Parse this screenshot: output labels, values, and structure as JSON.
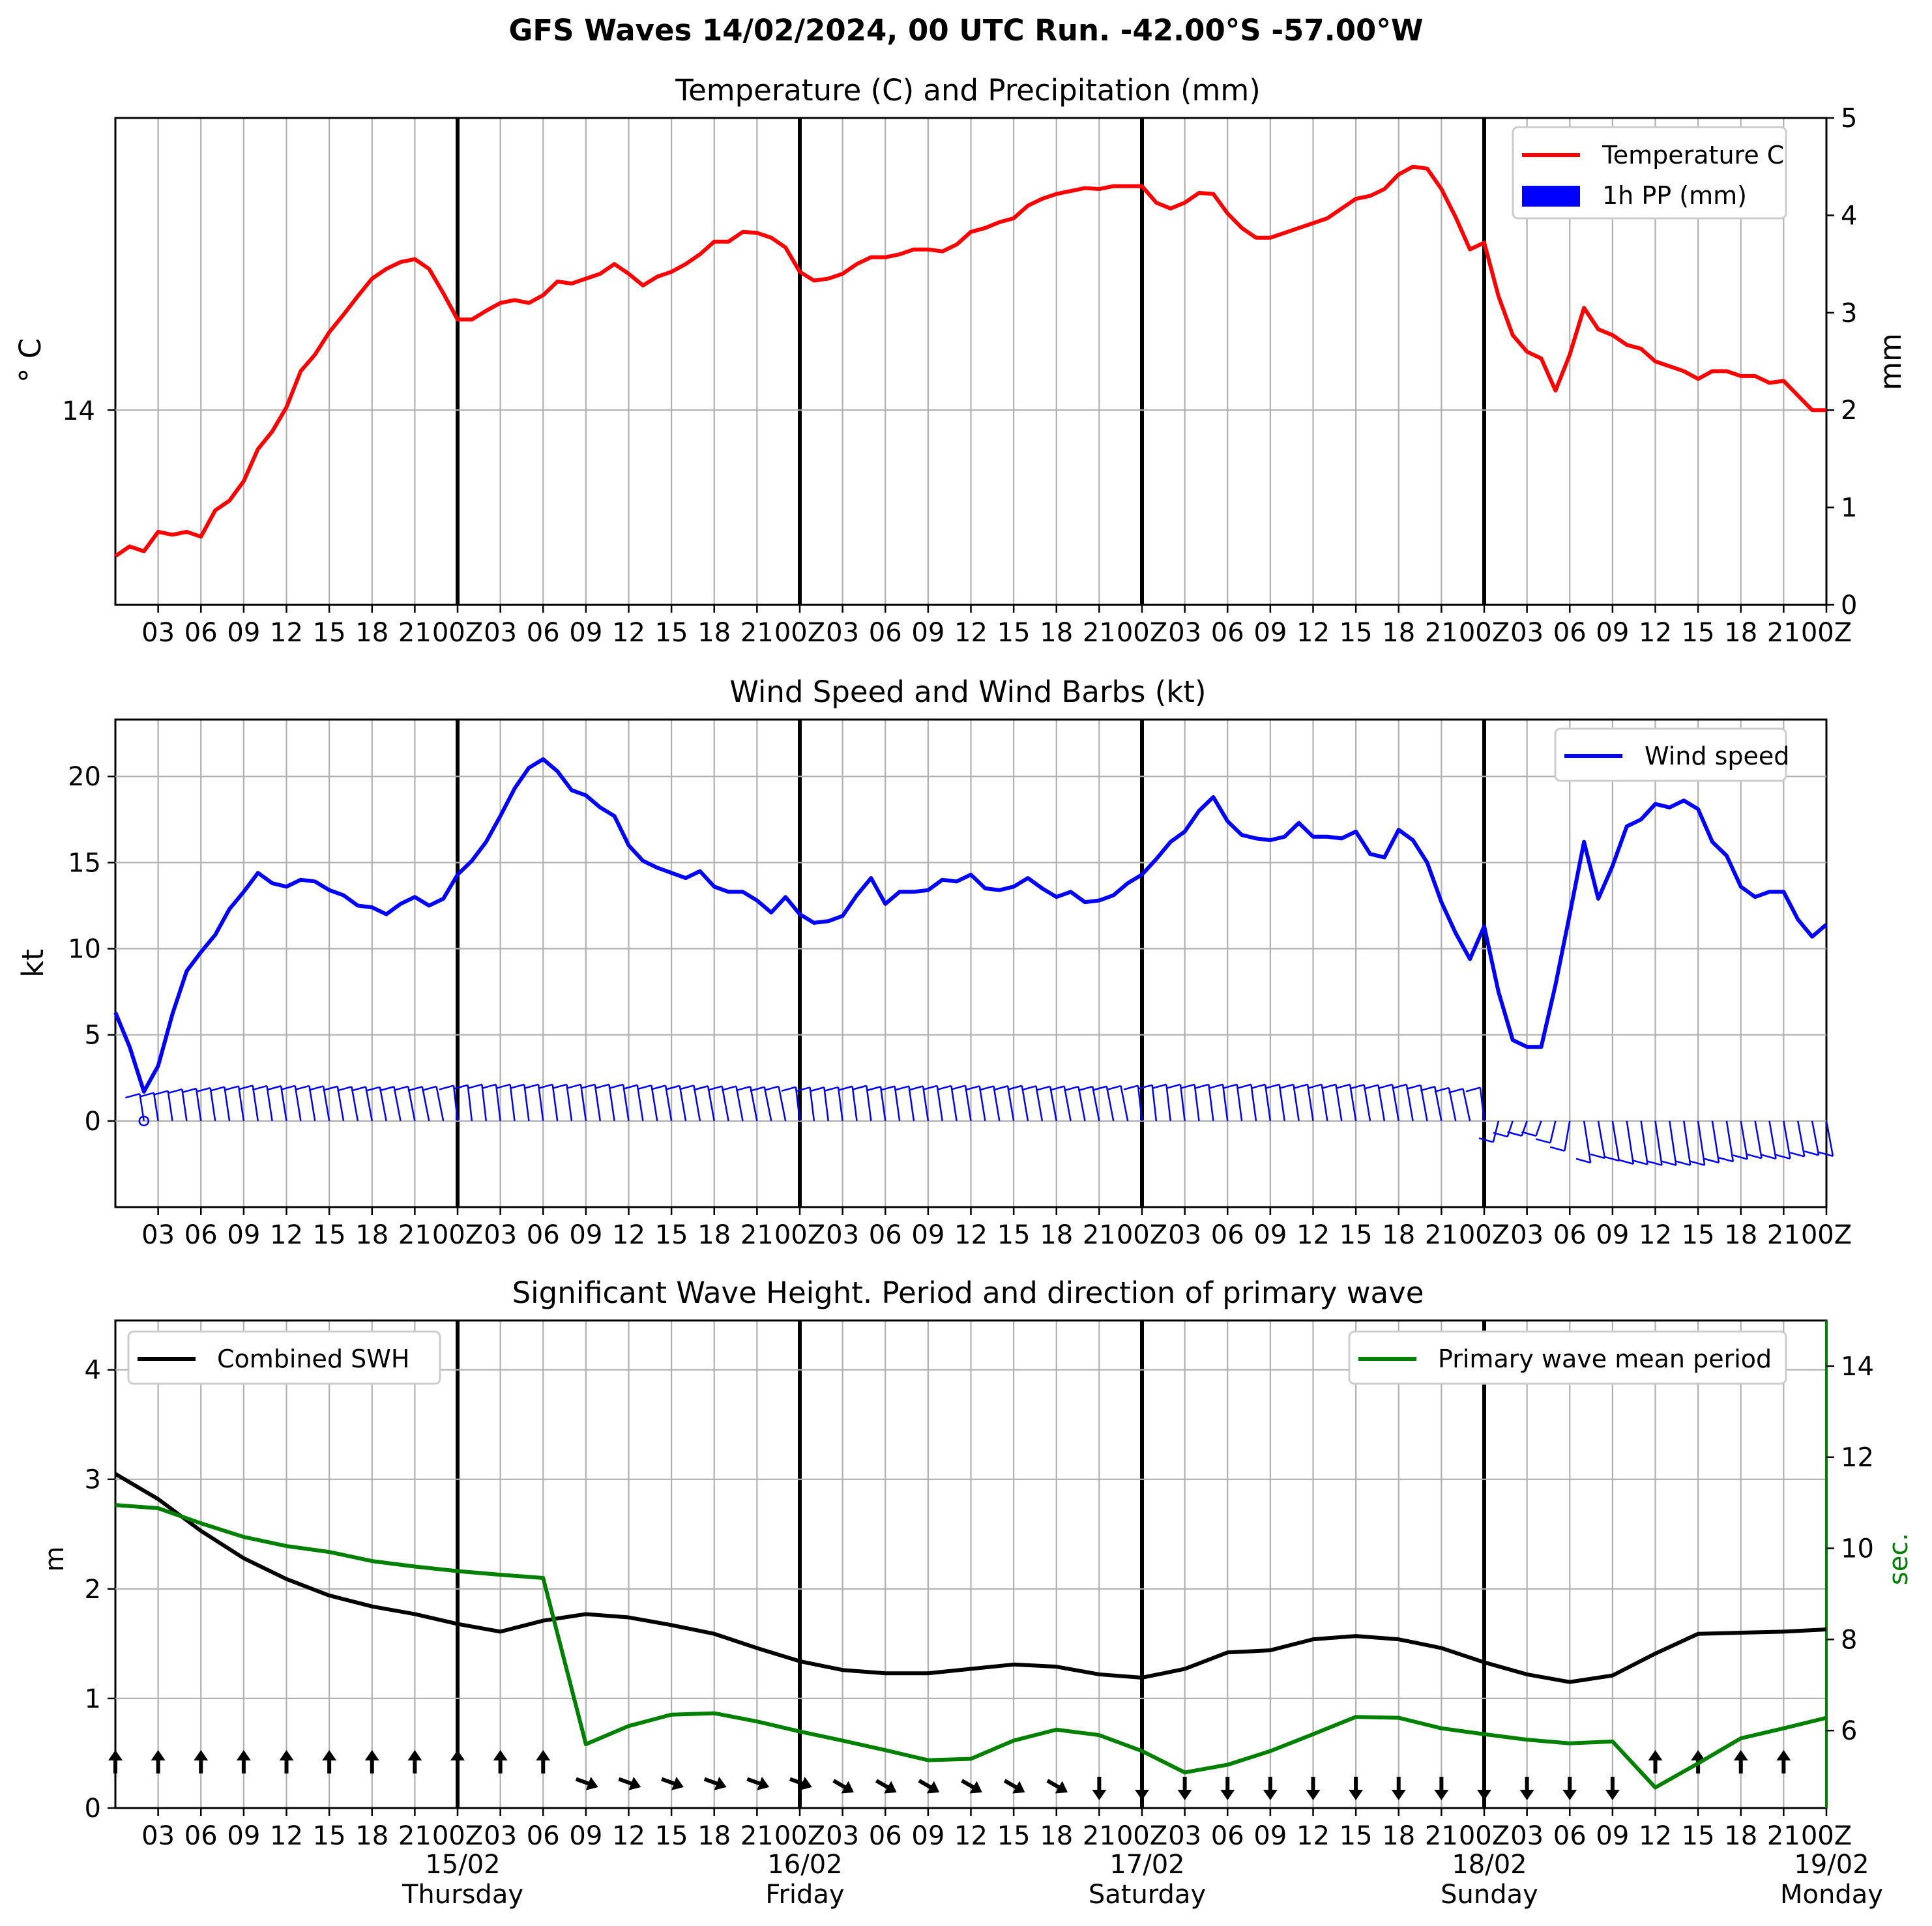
{
  "page": {
    "suptitle": "GFS Waves 14/02/2024, 00 UTC Run. -42.00°S -57.00°W"
  },
  "time_axis": {
    "hour_labels": [
      "03",
      "06",
      "09",
      "12",
      "15",
      "18",
      "21",
      "00Z",
      "03",
      "06",
      "09",
      "12",
      "15",
      "18",
      "21",
      "00Z",
      "03",
      "06",
      "09",
      "12",
      "15",
      "18",
      "21",
      "00Z",
      "03",
      "06",
      "09",
      "12",
      "15",
      "18",
      "21",
      "00Z",
      "03",
      "06",
      "09",
      "12",
      "15",
      "18",
      "21",
      "00Z"
    ],
    "date_labels": [
      {
        "date": "15/02",
        "day": "Thursday"
      },
      {
        "date": "16/02",
        "day": "Friday"
      },
      {
        "date": "17/02",
        "day": "Saturday"
      },
      {
        "date": "18/02",
        "day": "Sunday"
      },
      {
        "date": "19/02",
        "day": "Monday"
      }
    ]
  },
  "chart_data": [
    {
      "type": "line",
      "title": "Temperature (C) and Precipitation (mm)",
      "ylabel": "° C",
      "y2label": "mm",
      "y_ticks": [
        "14"
      ],
      "y2_ticks": [
        "0",
        "1",
        "2",
        "3",
        "4",
        "5"
      ],
      "y2lim": [
        0,
        5
      ],
      "grid": true,
      "legend_position": "upper-right",
      "x_hours": [
        0,
        120
      ],
      "series": [
        {
          "name": "Temperature C",
          "color": "#ff0000",
          "values_mm_scale": [
            0.5,
            0.6,
            0.55,
            0.75,
            0.72,
            0.75,
            0.7,
            0.97,
            1.07,
            1.27,
            1.6,
            1.78,
            2.03,
            2.4,
            2.57,
            2.8,
            2.98,
            3.17,
            3.35,
            3.45,
            3.52,
            3.55,
            3.45,
            3.2,
            2.93,
            2.93,
            3.02,
            3.1,
            3.13,
            3.1,
            3.18,
            3.32,
            3.3,
            3.35,
            3.4,
            3.5,
            3.4,
            3.28,
            3.37,
            3.42,
            3.5,
            3.6,
            3.73,
            3.73,
            3.83,
            3.82,
            3.77,
            3.67,
            3.42,
            3.33,
            3.35,
            3.4,
            3.5,
            3.57,
            3.57,
            3.6,
            3.65,
            3.65,
            3.63,
            3.7,
            3.83,
            3.87,
            3.93,
            3.97,
            4.1,
            4.17,
            4.22,
            4.25,
            4.28,
            4.27,
            4.3,
            4.3,
            4.3,
            4.13,
            4.07,
            4.13,
            4.23,
            4.22,
            4.02,
            3.87,
            3.77,
            3.77,
            3.82,
            3.87,
            3.92,
            3.97,
            4.07,
            4.17,
            4.2,
            4.27,
            4.42,
            4.5,
            4.48,
            4.27,
            3.98,
            3.65,
            3.72,
            3.17,
            2.77,
            2.6,
            2.53,
            2.2,
            2.57,
            3.05,
            2.83,
            2.77,
            2.67,
            2.63,
            2.5,
            2.45,
            2.4,
            2.32,
            2.4,
            2.4,
            2.35,
            2.35,
            2.28,
            2.3,
            2.15,
            2.0,
            2.0
          ]
        },
        {
          "name": "1h PP (mm)",
          "color": "#0000ff",
          "values": []
        }
      ]
    },
    {
      "type": "line",
      "title": "Wind Speed and Wind Barbs (kt)",
      "ylabel": "kt",
      "y_ticks": [
        "0",
        "5",
        "10",
        "15",
        "20"
      ],
      "ylim": [
        -5,
        23.3
      ],
      "grid": true,
      "legend_position": "upper-right",
      "series": [
        {
          "name": "Wind speed",
          "color": "#0000ff",
          "values": [
            6.3,
            4.3,
            1.7,
            3.2,
            6.2,
            8.7,
            9.8,
            10.8,
            12.3,
            13.3,
            14.4,
            13.8,
            13.6,
            14.0,
            13.9,
            13.4,
            13.1,
            12.5,
            12.4,
            12.0,
            12.6,
            13.0,
            12.5,
            12.9,
            14.3,
            15.1,
            16.2,
            17.7,
            19.3,
            20.5,
            21.0,
            20.3,
            19.2,
            18.9,
            18.2,
            17.7,
            16.0,
            15.1,
            14.7,
            14.4,
            14.1,
            14.5,
            13.6,
            13.3,
            13.3,
            12.8,
            12.1,
            13.0,
            12.0,
            11.5,
            11.6,
            11.9,
            13.1,
            14.1,
            12.6,
            13.3,
            13.3,
            13.4,
            14.0,
            13.9,
            14.3,
            13.5,
            13.4,
            13.6,
            14.1,
            13.5,
            13.0,
            13.3,
            12.7,
            12.8,
            13.1,
            13.8,
            14.3,
            15.2,
            16.2,
            16.8,
            18.0,
            18.8,
            17.4,
            16.6,
            16.4,
            16.3,
            16.5,
            17.3,
            16.5,
            16.5,
            16.4,
            16.8,
            15.5,
            15.3,
            16.9,
            16.3,
            15.0,
            12.7,
            10.9,
            9.4,
            11.3,
            7.5,
            4.7,
            4.3,
            4.3,
            7.9,
            12.0,
            16.2,
            12.9,
            14.8,
            17.1,
            17.5,
            18.4,
            18.2,
            18.6,
            18.1,
            16.2,
            15.4,
            13.6,
            13.0,
            13.3,
            13.3,
            11.7,
            10.7,
            11.4
          ]
        }
      ],
      "barbs": "wind barbs drawn every hour along y=0"
    },
    {
      "type": "line",
      "title": "Significant Wave Height. Period and direction of primary wave",
      "ylabel": "m",
      "y2label": "sec.",
      "y_ticks": [
        "0",
        "1",
        "2",
        "3",
        "4"
      ],
      "ylim": [
        0,
        4.45
      ],
      "y2_ticks": [
        "6",
        "8",
        "10",
        "12",
        "14"
      ],
      "y2lim": [
        4.3,
        15.0
      ],
      "grid": true,
      "x_hours": [
        0,
        3,
        6,
        9,
        12,
        15,
        18,
        21,
        24,
        27,
        30,
        33,
        36,
        39,
        42,
        45,
        48,
        51,
        54,
        57,
        60,
        63,
        66,
        69,
        72,
        75,
        78,
        81,
        84,
        87,
        90,
        93,
        96,
        99,
        102,
        105,
        108,
        111,
        114,
        117,
        120
      ],
      "series": [
        {
          "name": "Combined SWH",
          "color": "#000000",
          "legend_position": "upper-left",
          "values": [
            3.05,
            2.82,
            2.53,
            2.28,
            2.09,
            1.94,
            1.84,
            1.77,
            1.68,
            1.61,
            1.71,
            1.77,
            1.74,
            1.67,
            1.59,
            1.46,
            1.34,
            1.26,
            1.23,
            1.23,
            1.27,
            1.31,
            1.29,
            1.22,
            1.19,
            1.27,
            1.42,
            1.44,
            1.54,
            1.57,
            1.54,
            1.46,
            1.33,
            1.22,
            1.15,
            1.21,
            1.41,
            1.59,
            1.6,
            1.61,
            1.63
          ]
        },
        {
          "name": "Primary wave mean period",
          "color": "#008000",
          "legend_position": "upper-right",
          "values": [
            10.95,
            10.88,
            10.55,
            10.25,
            10.05,
            9.92,
            9.72,
            9.6,
            9.5,
            9.42,
            9.35,
            5.7,
            6.1,
            6.35,
            6.38,
            6.2,
            5.98,
            5.78,
            5.57,
            5.35,
            5.38,
            5.78,
            6.02,
            5.9,
            5.55,
            5.08,
            5.25,
            5.55,
            5.92,
            6.3,
            6.28,
            6.05,
            5.92,
            5.8,
            5.72,
            5.76,
            4.75,
            5.28,
            5.83,
            6.05,
            6.28
          ]
        }
      ],
      "direction_arrows": "primary wave direction arrows drawn every 3 hours"
    }
  ]
}
